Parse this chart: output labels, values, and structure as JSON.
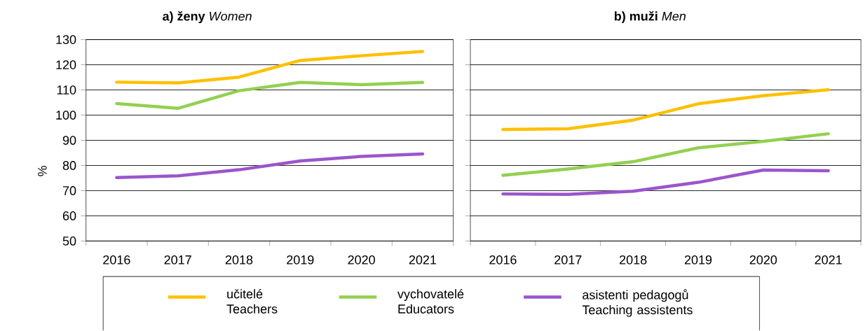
{
  "chart_data": [
    {
      "type": "line",
      "title": "**a) ženy**      *Women*",
      "ylabel": "%",
      "categories": [
        "2016",
        "2017",
        "2018",
        "2019",
        "2020",
        "2021"
      ],
      "ylim": [
        50,
        130
      ],
      "yticks": [
        50,
        60,
        70,
        80,
        90,
        100,
        110,
        120,
        130
      ],
      "grid": "y",
      "legend": "bottom",
      "series": [
        {
          "name": "učitelé Teachers",
          "color": "#ffc000",
          "values": [
            113.1,
            112.8,
            115.1,
            121.7,
            123.6,
            125.3
          ]
        },
        {
          "name": "vychovatelé Educators",
          "color": "#92d050",
          "values": [
            104.6,
            102.7,
            109.7,
            113.0,
            112.1,
            113.0
          ]
        },
        {
          "name": "asistenti pedagogů Teaching assistents",
          "color": "#9b55cc",
          "values": [
            75.2,
            75.9,
            78.3,
            81.8,
            83.6,
            84.6
          ]
        }
      ]
    },
    {
      "type": "line",
      "title": "**b) muži**      *Men*",
      "categories": [
        "2016",
        "2017",
        "2018",
        "2019",
        "2020",
        "2021"
      ],
      "ylim": [
        50,
        130
      ],
      "yticks": [
        50,
        60,
        70,
        80,
        90,
        100,
        110,
        120,
        130
      ],
      "grid": "y",
      "tick_labels": "x",
      "series": [
        {
          "color": "#ffc000",
          "values": [
            94.3,
            94.6,
            98.0,
            104.5,
            107.7,
            110.1
          ]
        },
        {
          "color": "#92d050",
          "values": [
            76.1,
            78.6,
            81.5,
            87.0,
            89.6,
            92.6
          ]
        },
        {
          "color": "#9b55cc",
          "values": [
            68.7,
            68.5,
            69.8,
            73.3,
            78.2,
            77.9
          ]
        }
      ]
    }
  ]
}
